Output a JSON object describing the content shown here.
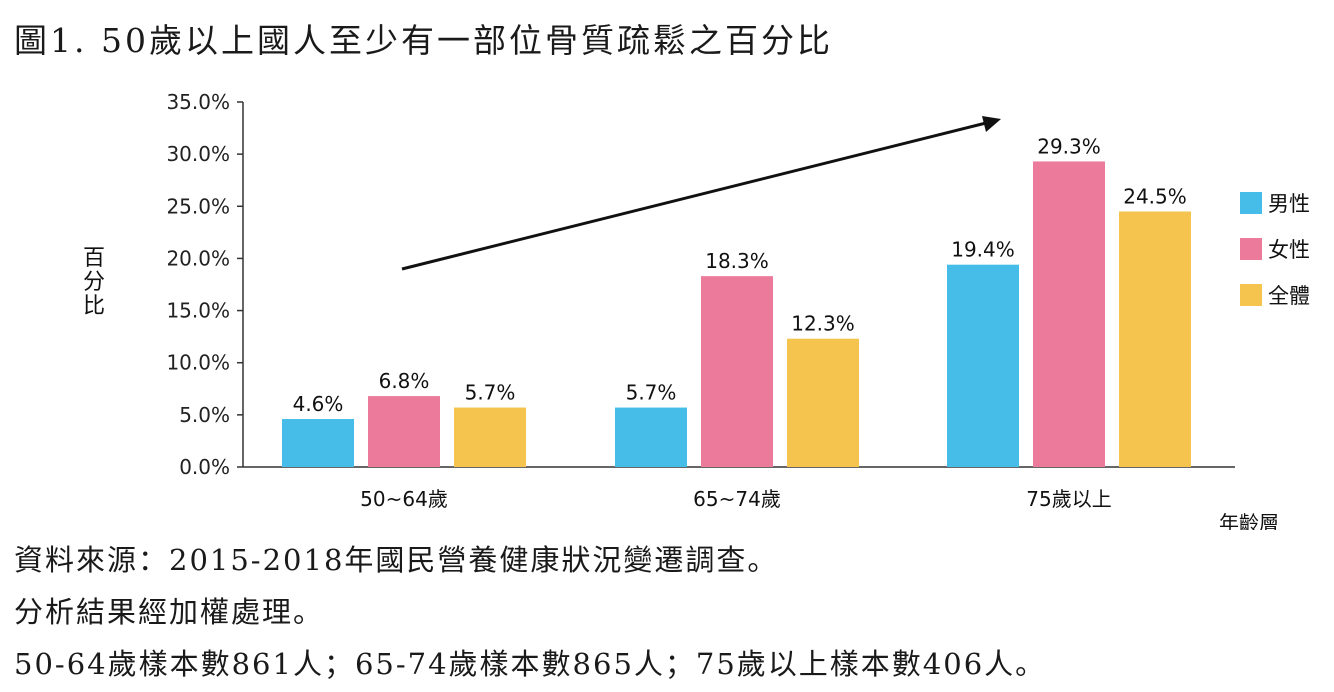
{
  "title": "圖1. 50歲以上國人至少有一部位骨質疏鬆之百分比",
  "notes": [
    "資料來源：2015-2018年國民營養健康狀況變遷調查。",
    "分析結果經加權處理。",
    "50-64歲樣本數861人；65-74歲樣本數865人；75歲以上樣本數406人。"
  ],
  "chart_data": {
    "type": "bar",
    "categories": [
      "50~64歲",
      "65~74歲",
      "75歲以上"
    ],
    "series": [
      {
        "name": "男性",
        "values": [
          4.6,
          5.7,
          19.4
        ],
        "labels": [
          "4.6%",
          "5.7%",
          "19.4%"
        ],
        "color": "#45bde8"
      },
      {
        "name": "女性",
        "values": [
          6.8,
          18.3,
          29.3
        ],
        "labels": [
          "6.8%",
          "18.3%",
          "29.3%"
        ],
        "color": "#ec7a9a"
      },
      {
        "name": "全體",
        "values": [
          5.7,
          12.3,
          24.5
        ],
        "labels": [
          "5.7%",
          "12.3%",
          "24.5%"
        ],
        "color": "#f5c44e"
      }
    ],
    "ylim": [
      0,
      35
    ],
    "yticks": [
      "0.0%",
      "5.0%",
      "10.0%",
      "15.0%",
      "20.0%",
      "25.0%",
      "30.0%",
      "35.0%"
    ],
    "ylabel": "百分比",
    "xlabel": "年齡層",
    "legend": "right",
    "grid": false,
    "annotation": "upward trend arrow"
  }
}
